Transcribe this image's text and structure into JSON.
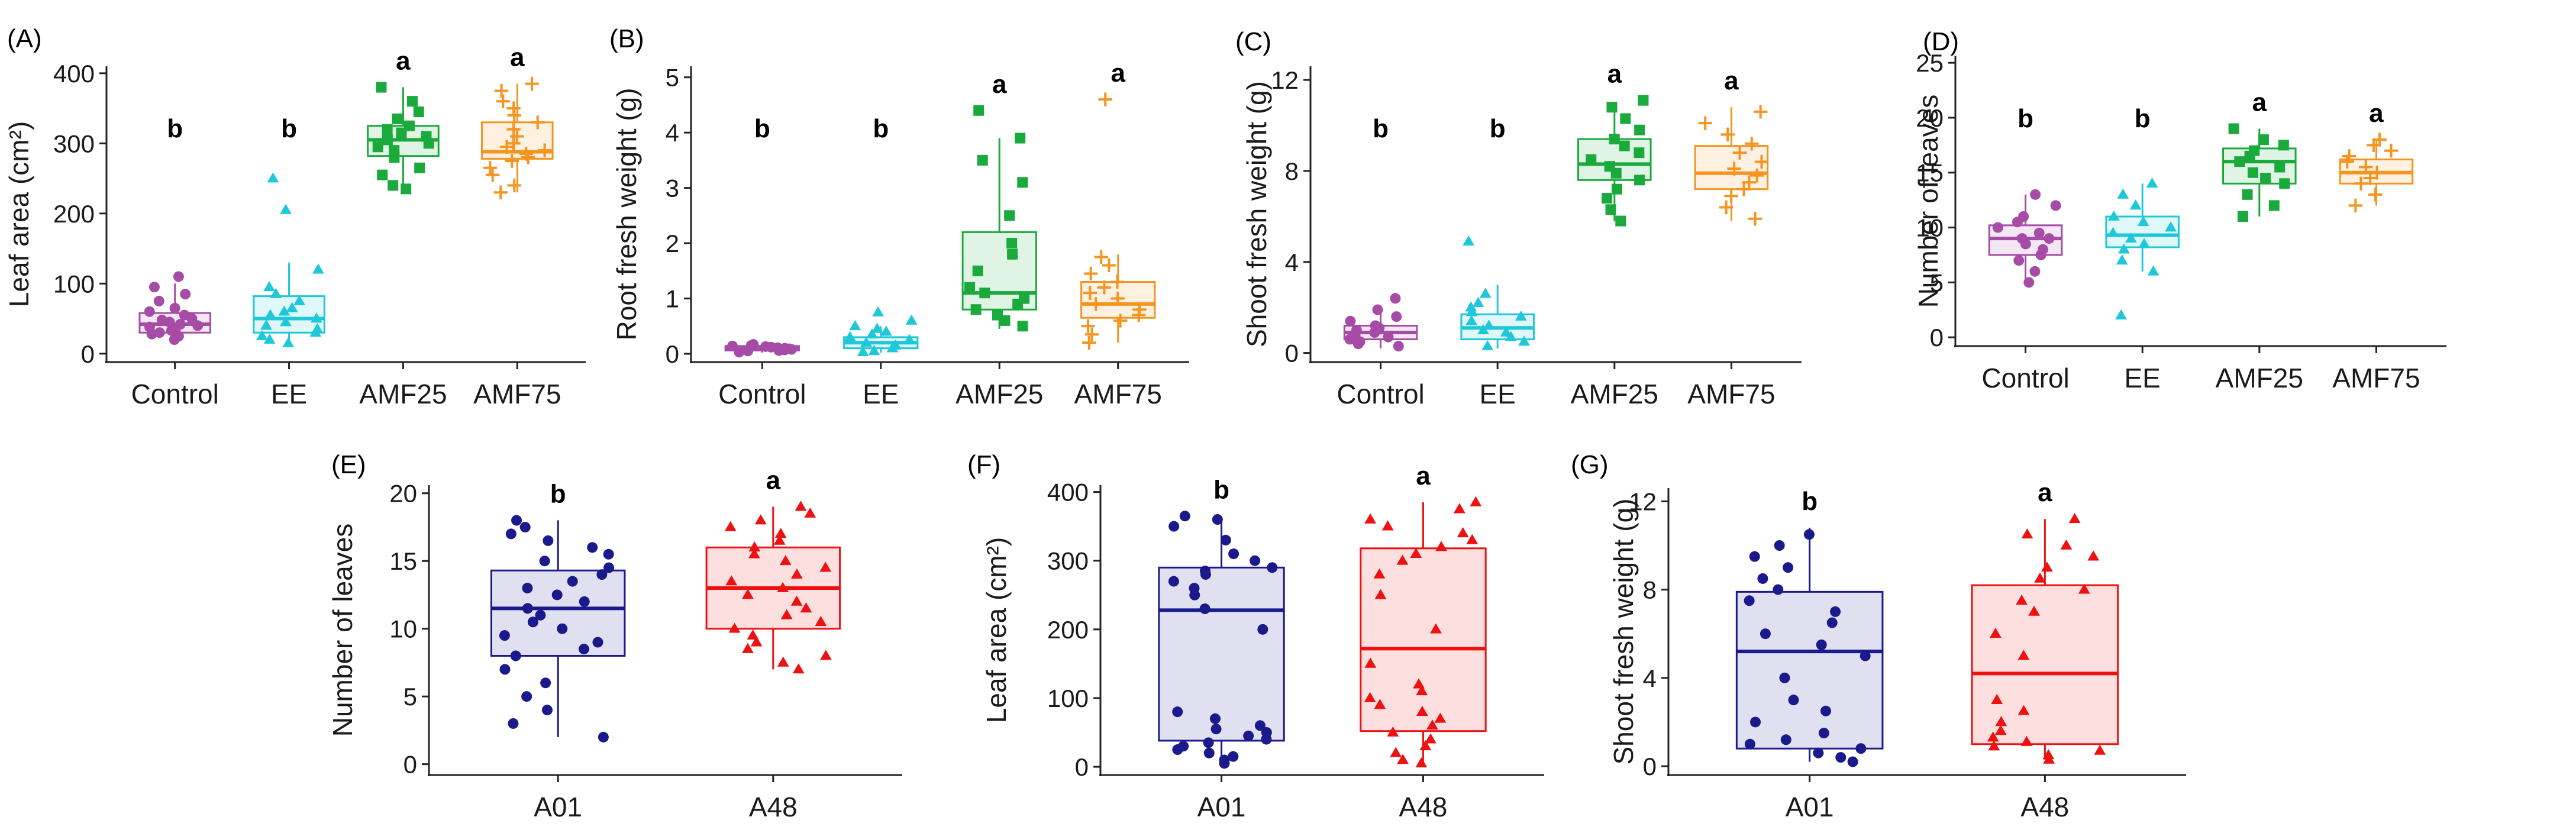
{
  "chart_data": [
    {
      "panel": "(A)",
      "type": "box",
      "ylabel": "Leaf area (cm²)",
      "ylim": [
        -12,
        410
      ],
      "yticks": [
        0,
        100,
        200,
        300,
        400
      ],
      "categories": [
        "Control",
        "EE",
        "AMF25",
        "AMF75"
      ],
      "colors": [
        "#a64ca6",
        "#1ec8d8",
        "#1aaa3c",
        "#f5941f"
      ],
      "markers": [
        "circle",
        "triangle",
        "square",
        "plus"
      ],
      "letters": [
        "b",
        "b",
        "a",
        "a"
      ],
      "boxes": [
        {
          "min": 15,
          "q1": 30,
          "median": 42,
          "q3": 58,
          "max": 100
        },
        {
          "min": 10,
          "q1": 30,
          "median": 50,
          "q3": 82,
          "max": 130
        },
        {
          "min": 235,
          "q1": 282,
          "median": 305,
          "q3": 325,
          "max": 380
        },
        {
          "min": 230,
          "q1": 278,
          "median": 288,
          "q3": 330,
          "max": 385
        }
      ],
      "points": [
        [
          20,
          25,
          28,
          30,
          33,
          35,
          38,
          40,
          42,
          45,
          48,
          50,
          55,
          60,
          65,
          75,
          85,
          95,
          110
        ],
        [
          15,
          20,
          25,
          30,
          35,
          40,
          45,
          50,
          55,
          60,
          65,
          75,
          85,
          95,
          120,
          205,
          250
        ],
        [
          235,
          240,
          255,
          265,
          280,
          290,
          295,
          300,
          305,
          310,
          315,
          320,
          325,
          335,
          345,
          360,
          380
        ],
        [
          230,
          240,
          255,
          265,
          275,
          280,
          285,
          290,
          295,
          300,
          310,
          320,
          330,
          340,
          350,
          360,
          375,
          385
        ]
      ]
    },
    {
      "panel": "(B)",
      "type": "box",
      "ylabel": "Root fresh weight (g)",
      "ylim": [
        -0.15,
        5.2
      ],
      "yticks": [
        0,
        1,
        2,
        3,
        4,
        5
      ],
      "categories": [
        "Control",
        "EE",
        "AMF25",
        "AMF75"
      ],
      "colors": [
        "#a64ca6",
        "#1ec8d8",
        "#1aaa3c",
        "#f5941f"
      ],
      "markers": [
        "circle",
        "triangle",
        "square",
        "plus"
      ],
      "letters": [
        "b",
        "b",
        "a",
        "a"
      ],
      "boxes": [
        {
          "min": 0.02,
          "q1": 0.06,
          "median": 0.1,
          "q3": 0.14,
          "max": 0.18
        },
        {
          "min": 0.02,
          "q1": 0.1,
          "median": 0.2,
          "q3": 0.3,
          "max": 0.5
        },
        {
          "min": 0.45,
          "q1": 0.8,
          "median": 1.1,
          "q3": 2.2,
          "max": 3.9
        },
        {
          "min": 0.2,
          "q1": 0.65,
          "median": 0.9,
          "q3": 1.3,
          "max": 1.8
        }
      ],
      "points": [
        [
          0.03,
          0.05,
          0.06,
          0.07,
          0.08,
          0.09,
          0.1,
          0.11,
          0.12,
          0.13,
          0.14,
          0.15,
          0.17
        ],
        [
          0.03,
          0.05,
          0.1,
          0.15,
          0.2,
          0.25,
          0.3,
          0.35,
          0.4,
          0.45,
          0.5,
          0.6,
          0.75
        ],
        [
          0.5,
          0.6,
          0.7,
          0.8,
          0.9,
          1.0,
          1.1,
          1.2,
          1.5,
          1.8,
          2.0,
          2.5,
          3.1,
          3.5,
          3.9,
          4.4
        ],
        [
          0.2,
          0.35,
          0.5,
          0.6,
          0.7,
          0.8,
          0.9,
          1.0,
          1.1,
          1.2,
          1.3,
          1.45,
          1.6,
          1.75,
          4.6
        ]
      ]
    },
    {
      "panel": "(C)",
      "type": "box",
      "ylabel": "Shoot fresh weight (g)",
      "ylim": [
        -0.4,
        12.6
      ],
      "yticks": [
        0,
        4,
        8,
        12
      ],
      "categories": [
        "Control",
        "EE",
        "AMF25",
        "AMF75"
      ],
      "colors": [
        "#a64ca6",
        "#1ec8d8",
        "#1aaa3c",
        "#f5941f"
      ],
      "markers": [
        "circle",
        "triangle",
        "square",
        "plus"
      ],
      "letters": [
        "b",
        "b",
        "a",
        "a"
      ],
      "boxes": [
        {
          "min": 0.2,
          "q1": 0.6,
          "median": 0.9,
          "q3": 1.2,
          "max": 2.0
        },
        {
          "min": 0.2,
          "q1": 0.6,
          "median": 1.1,
          "q3": 1.7,
          "max": 3.0
        },
        {
          "min": 5.8,
          "q1": 7.6,
          "median": 8.3,
          "q3": 9.4,
          "max": 11.0
        },
        {
          "min": 5.8,
          "q1": 7.2,
          "median": 7.9,
          "q3": 9.1,
          "max": 10.8
        }
      ],
      "points": [
        [
          0.3,
          0.4,
          0.5,
          0.6,
          0.7,
          0.8,
          0.9,
          1.0,
          1.1,
          1.2,
          1.4,
          1.6,
          1.9,
          2.4
        ],
        [
          0.3,
          0.5,
          0.7,
          0.9,
          1.0,
          1.2,
          1.4,
          1.6,
          1.8,
          2.0,
          2.2,
          2.6,
          4.9
        ],
        [
          5.8,
          6.3,
          6.8,
          7.2,
          7.6,
          7.9,
          8.2,
          8.5,
          8.8,
          9.1,
          9.4,
          9.8,
          10.3,
          10.8,
          11.1
        ],
        [
          5.9,
          6.4,
          6.9,
          7.2,
          7.5,
          7.8,
          8.1,
          8.4,
          8.8,
          9.2,
          9.6,
          10.1,
          10.6
        ]
      ]
    },
    {
      "panel": "(D)",
      "type": "box",
      "ylabel": "Number of leaves",
      "ylim": [
        -0.8,
        25.6
      ],
      "yticks": [
        0,
        5,
        10,
        15,
        20,
        25
      ],
      "categories": [
        "Control",
        "EE",
        "AMF25",
        "AMF75"
      ],
      "colors": [
        "#a64ca6",
        "#1ec8d8",
        "#1aaa3c",
        "#f5941f"
      ],
      "markers": [
        "circle",
        "triangle",
        "square",
        "plus"
      ],
      "letters": [
        "b",
        "b",
        "a",
        "a"
      ],
      "boxes": [
        {
          "min": 5,
          "q1": 7.5,
          "median": 9,
          "q3": 10.2,
          "max": 13
        },
        {
          "min": 6,
          "q1": 8.2,
          "median": 9.3,
          "q3": 11,
          "max": 14
        },
        {
          "min": 11,
          "q1": 14,
          "median": 16,
          "q3": 17.2,
          "max": 19
        },
        {
          "min": 12,
          "q1": 14,
          "median": 15,
          "q3": 16.2,
          "max": 18
        }
      ],
      "points": [
        [
          5,
          6,
          7,
          7.5,
          8,
          8.5,
          9,
          9,
          9.5,
          10,
          10.5,
          11,
          12,
          13
        ],
        [
          2,
          6,
          7,
          8,
          8.5,
          9,
          9.5,
          10,
          10.5,
          11,
          12,
          13,
          14
        ],
        [
          11,
          12,
          13,
          14,
          14.5,
          15,
          15.5,
          16,
          16.5,
          17,
          17.5,
          18,
          19
        ],
        [
          12,
          13,
          14,
          14.5,
          15,
          15.5,
          16,
          16.5,
          17,
          17.5,
          18
        ]
      ]
    },
    {
      "panel": "(E)",
      "type": "box",
      "ylabel": "Number of leaves",
      "ylim": [
        -0.8,
        20.6
      ],
      "yticks": [
        0,
        5,
        10,
        15,
        20
      ],
      "categories": [
        "A01",
        "A48"
      ],
      "colors": [
        "#1a1a8c",
        "#ee1111"
      ],
      "markers": [
        "circle",
        "triangle"
      ],
      "letters": [
        "b",
        "a"
      ],
      "boxes": [
        {
          "min": 2,
          "q1": 8,
          "median": 11.5,
          "q3": 14.3,
          "max": 18
        },
        {
          "min": 7,
          "q1": 10,
          "median": 13,
          "q3": 16,
          "max": 19
        }
      ],
      "points": [
        [
          2,
          3,
          4,
          5,
          6,
          7,
          8,
          8.5,
          9,
          9.5,
          10,
          10.5,
          11,
          11.5,
          12,
          12.5,
          13,
          13.5,
          14,
          14.5,
          15,
          15.5,
          16,
          16.5,
          17,
          17.5,
          18
        ],
        [
          7,
          7.5,
          8,
          8.5,
          9,
          9.5,
          10,
          10.5,
          11,
          11.5,
          12,
          12.5,
          13,
          13.5,
          14,
          14.5,
          15,
          15.5,
          16,
          16.5,
          17,
          17.5,
          18,
          18.5,
          19
        ]
      ]
    },
    {
      "panel": "(F)",
      "type": "box",
      "ylabel": "Leaf area (cm²)",
      "ylim": [
        -12,
        410
      ],
      "yticks": [
        0,
        100,
        200,
        300,
        400
      ],
      "categories": [
        "A01",
        "A48"
      ],
      "colors": [
        "#1a1a8c",
        "#ee1111"
      ],
      "markers": [
        "circle",
        "triangle"
      ],
      "letters": [
        "b",
        "a"
      ],
      "boxes": [
        {
          "min": 5,
          "q1": 38,
          "median": 228,
          "q3": 290,
          "max": 362
        },
        {
          "min": 5,
          "q1": 52,
          "median": 172,
          "q3": 318,
          "max": 385
        }
      ],
      "points": [
        [
          5,
          10,
          15,
          20,
          25,
          30,
          35,
          40,
          45,
          50,
          55,
          60,
          70,
          80,
          200,
          230,
          250,
          260,
          270,
          280,
          285,
          290,
          300,
          310,
          330,
          350,
          360,
          365
        ],
        [
          5,
          10,
          20,
          30,
          40,
          50,
          60,
          70,
          80,
          90,
          100,
          110,
          120,
          150,
          200,
          250,
          280,
          300,
          310,
          320,
          330,
          340,
          350,
          360,
          375,
          385
        ]
      ]
    },
    {
      "panel": "(G)",
      "type": "box",
      "ylabel": "Shoot fresh weight (g)",
      "ylim": [
        -0.4,
        12.6
      ],
      "yticks": [
        0,
        4,
        8,
        12
      ],
      "categories": [
        "A01",
        "A48"
      ],
      "colors": [
        "#1a1a8c",
        "#ee1111"
      ],
      "markers": [
        "circle",
        "triangle"
      ],
      "letters": [
        "b",
        "a"
      ],
      "boxes": [
        {
          "min": 0.2,
          "q1": 0.8,
          "median": 5.2,
          "q3": 7.9,
          "max": 10.8
        },
        {
          "min": 0.3,
          "q1": 1.0,
          "median": 4.2,
          "q3": 8.2,
          "max": 11.2
        }
      ],
      "points": [
        [
          0.2,
          0.4,
          0.6,
          0.8,
          1.0,
          1.2,
          1.5,
          2.0,
          2.5,
          3.0,
          4.0,
          5.0,
          5.5,
          6.0,
          6.5,
          7.0,
          7.5,
          8.0,
          8.5,
          9.0,
          9.5,
          10.0,
          10.5
        ],
        [
          0.3,
          0.5,
          0.7,
          0.9,
          1.1,
          1.3,
          1.6,
          2.0,
          2.5,
          3.0,
          5.0,
          6.0,
          7.0,
          7.5,
          8.0,
          8.5,
          9.0,
          9.5,
          10.0,
          10.5,
          11.2
        ]
      ]
    }
  ]
}
